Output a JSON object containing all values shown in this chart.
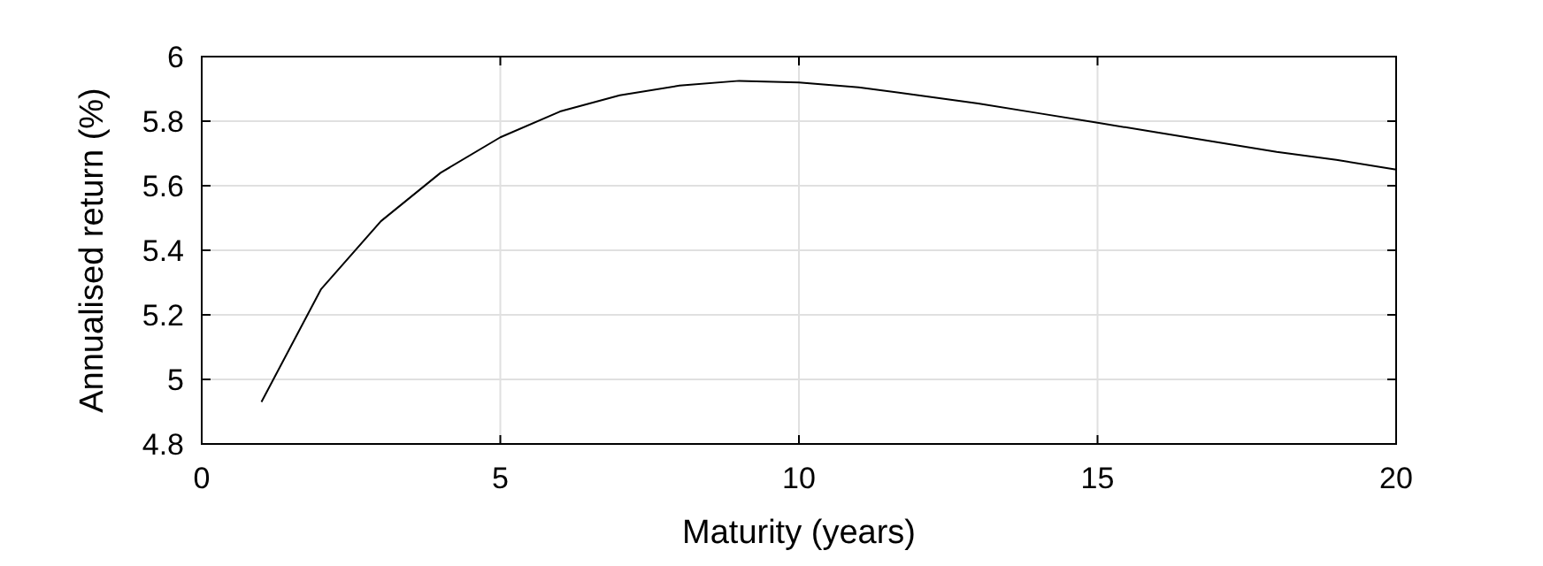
{
  "chart_data": {
    "type": "line",
    "xlabel": "Maturity (years)",
    "ylabel": "Annualised return (%)",
    "x": [
      1,
      2,
      3,
      4,
      5,
      6,
      7,
      8,
      9,
      10,
      11,
      12,
      13,
      14,
      15,
      16,
      17,
      18,
      19,
      20
    ],
    "series": [
      {
        "color": "#000000",
        "values": [
          4.93,
          5.28,
          5.49,
          5.64,
          5.75,
          5.83,
          5.88,
          5.91,
          5.925,
          5.92,
          5.905,
          5.88,
          5.855,
          5.825,
          5.795,
          5.765,
          5.735,
          5.705,
          5.68,
          5.65
        ]
      }
    ],
    "xlim": [
      0,
      20
    ],
    "xticks": [
      0,
      5,
      10,
      15,
      20
    ],
    "ylim": [
      4.8,
      6
    ],
    "yticks": [
      4.8,
      5,
      5.2,
      5.4,
      5.6,
      5.8,
      6
    ],
    "grid": true,
    "marker": "none",
    "line_style": "solid"
  }
}
